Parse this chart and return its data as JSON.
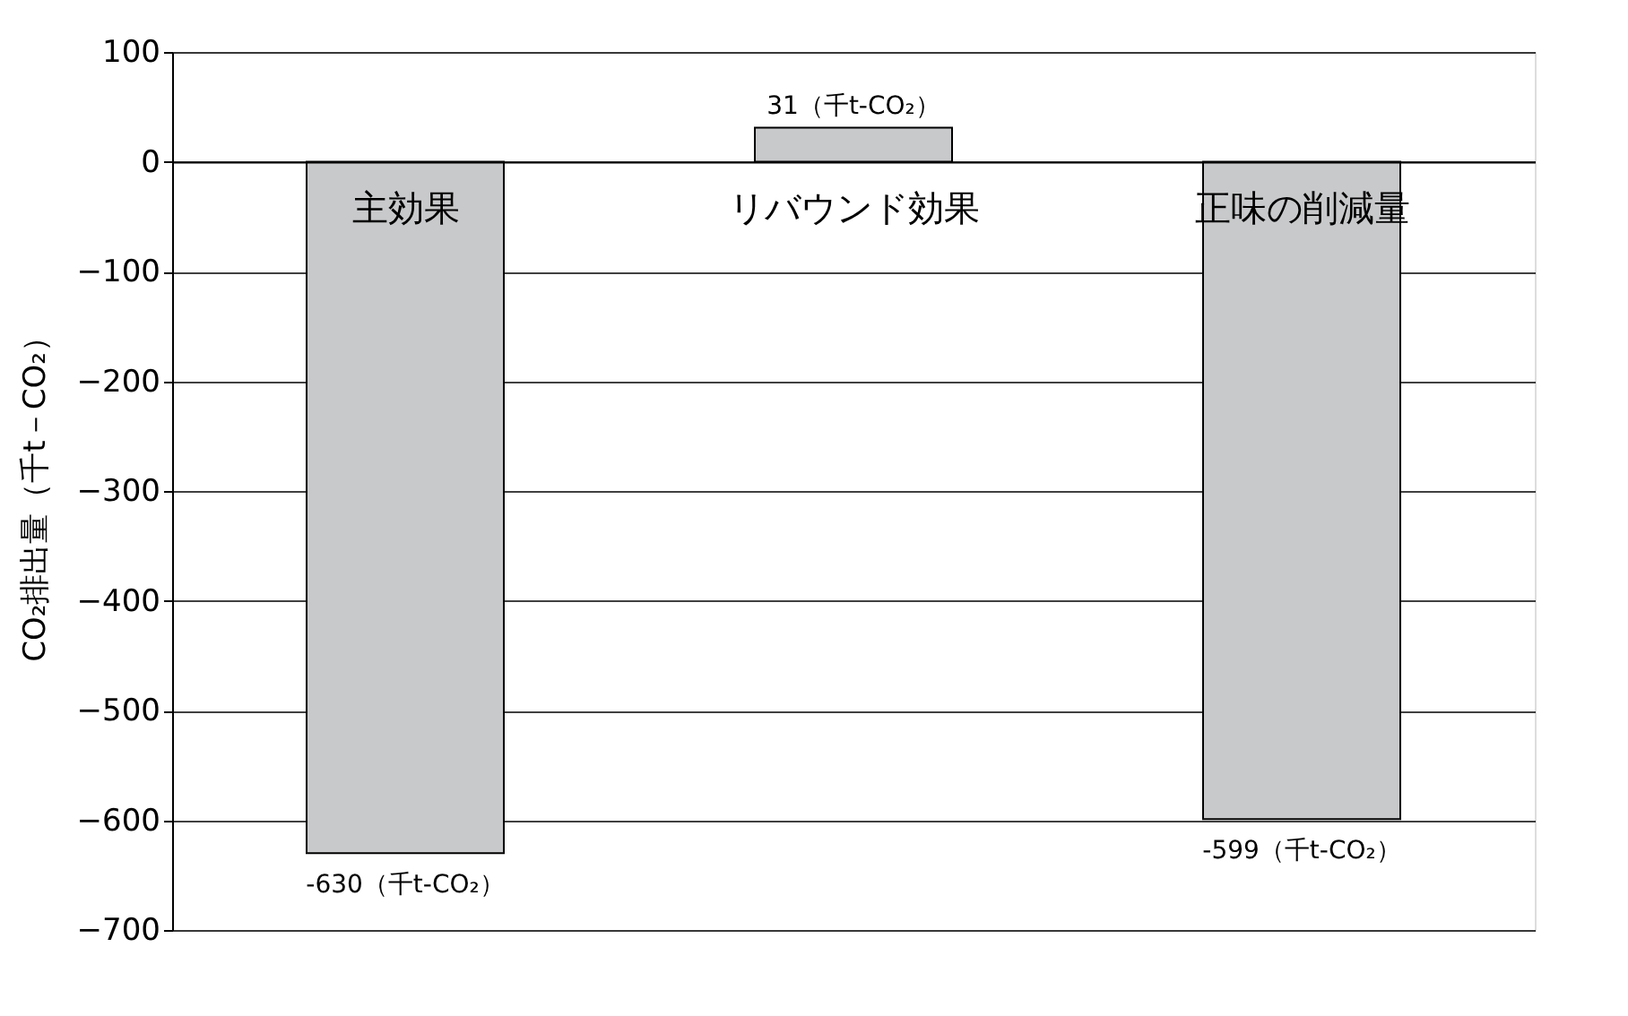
{
  "chart_data": {
    "type": "bar",
    "ylabel": "CO₂排出量（千t－CO₂）",
    "categories": [
      "主効果",
      "リバウンド効果",
      "正味の削減量"
    ],
    "values": [
      -630,
      31,
      -599
    ],
    "value_labels": [
      "-630（千t-CO₂）",
      "31（千t-CO₂）",
      "-599（千t-CO₂）"
    ],
    "color": "#c8c9cb",
    "ylim": [
      -700,
      100
    ],
    "yticks": [
      -700,
      -600,
      -500,
      -400,
      -300,
      -200,
      -100,
      0,
      100
    ],
    "grid": "y"
  }
}
